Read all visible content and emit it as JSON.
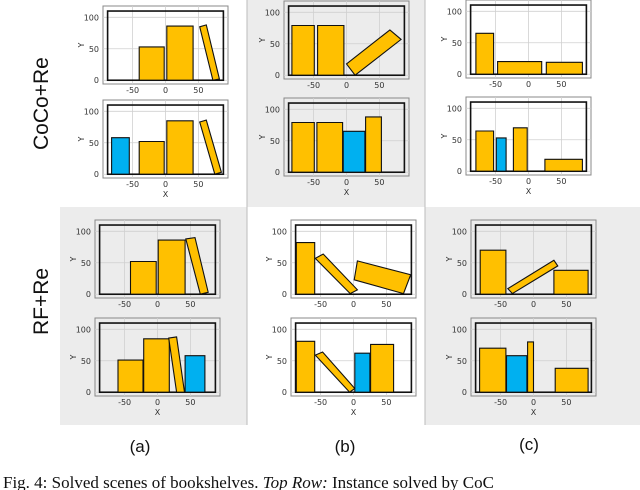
{
  "colors": {
    "book_yellow": "#FFC000",
    "book_blue": "#00B0F0",
    "panel_gray": "#ececec",
    "shelf": "#111111"
  },
  "row_labels": [
    "CoCo+Re",
    "RF+Re"
  ],
  "panel_labels": [
    "(a)",
    "(b)",
    "(c)"
  ],
  "caption": {
    "prefix": "Fig. 4: Solved scenes of bookshelves. ",
    "italic": "Top Row:",
    "suffix": " Instance solved by CoC"
  },
  "axes": {
    "xlabel": "X",
    "ylabel": "Y",
    "xticks": [
      "-50",
      "0",
      "50"
    ],
    "yticks": [
      "0",
      "50",
      "100"
    ],
    "xtick_values": [
      -50,
      0,
      50
    ],
    "ytick_values": [
      0,
      50,
      100
    ],
    "xlim": [
      -95,
      95
    ],
    "ylim": [
      -6,
      118
    ],
    "shelf": [
      -88,
      88,
      0,
      110
    ]
  },
  "plots": [
    {
      "name": "coco-a-1",
      "show_xlabel": false,
      "books": [
        {
          "c": "yellow",
          "p": [
            [
              -40,
              0
            ],
            [
              -2,
              0
            ],
            [
              -2,
              53
            ],
            [
              -40,
              53
            ]
          ]
        },
        {
          "c": "yellow",
          "p": [
            [
              2,
              0
            ],
            [
              42,
              0
            ],
            [
              42,
              86
            ],
            [
              2,
              86
            ]
          ]
        },
        {
          "c": "yellow",
          "p": [
            [
              52,
              85
            ],
            [
              62,
              88
            ],
            [
              82,
              2
            ],
            [
              72,
              0
            ]
          ]
        }
      ]
    },
    {
      "name": "coco-a-2",
      "show_xlabel": true,
      "books": [
        {
          "c": "blue",
          "p": [
            [
              -82,
              0
            ],
            [
              -55,
              0
            ],
            [
              -55,
              58
            ],
            [
              -82,
              58
            ]
          ]
        },
        {
          "c": "yellow",
          "p": [
            [
              -40,
              0
            ],
            [
              -2,
              0
            ],
            [
              -2,
              52
            ],
            [
              -40,
              52
            ]
          ]
        },
        {
          "c": "yellow",
          "p": [
            [
              2,
              0
            ],
            [
              42,
              0
            ],
            [
              42,
              85
            ],
            [
              2,
              85
            ]
          ]
        },
        {
          "c": "yellow",
          "p": [
            [
              52,
              83
            ],
            [
              62,
              86
            ],
            [
              85,
              3
            ],
            [
              75,
              0
            ]
          ]
        }
      ]
    },
    {
      "name": "coco-b-1",
      "show_xlabel": false,
      "books": [
        {
          "c": "yellow",
          "p": [
            [
              -83,
              0
            ],
            [
              -49,
              0
            ],
            [
              -49,
              79
            ],
            [
              -83,
              79
            ]
          ]
        },
        {
          "c": "yellow",
          "p": [
            [
              -44,
              0
            ],
            [
              -4,
              0
            ],
            [
              -4,
              79
            ],
            [
              -44,
              79
            ]
          ]
        },
        {
          "c": "yellow",
          "p": [
            [
              0,
              18
            ],
            [
              66,
              72
            ],
            [
              83,
              57
            ],
            [
              13,
              0
            ]
          ]
        }
      ]
    },
    {
      "name": "coco-b-2",
      "show_xlabel": true,
      "books": [
        {
          "c": "yellow",
          "p": [
            [
              -83,
              0
            ],
            [
              -49,
              0
            ],
            [
              -49,
              79
            ],
            [
              -83,
              79
            ]
          ]
        },
        {
          "c": "yellow",
          "p": [
            [
              -45,
              0
            ],
            [
              -6,
              0
            ],
            [
              -6,
              79
            ],
            [
              -45,
              79
            ]
          ]
        },
        {
          "c": "blue",
          "p": [
            [
              -5,
              0
            ],
            [
              28,
              0
            ],
            [
              28,
              65
            ],
            [
              -5,
              65
            ]
          ]
        },
        {
          "c": "yellow",
          "p": [
            [
              29,
              0
            ],
            [
              53,
              0
            ],
            [
              53,
              88
            ],
            [
              29,
              88
            ]
          ]
        }
      ]
    },
    {
      "name": "coco-c-1",
      "show_xlabel": false,
      "books": [
        {
          "c": "yellow",
          "p": [
            [
              -80,
              0
            ],
            [
              -53,
              0
            ],
            [
              -53,
              65
            ],
            [
              -80,
              65
            ]
          ]
        },
        {
          "c": "yellow",
          "p": [
            [
              -47,
              0
            ],
            [
              20,
              0
            ],
            [
              20,
              20
            ],
            [
              -47,
              20
            ]
          ]
        },
        {
          "c": "yellow",
          "p": [
            [
              27,
              0
            ],
            [
              82,
              0
            ],
            [
              82,
              19
            ],
            [
              27,
              19
            ]
          ]
        }
      ]
    },
    {
      "name": "coco-c-2",
      "show_xlabel": true,
      "books": [
        {
          "c": "yellow",
          "p": [
            [
              -80,
              0
            ],
            [
              -53,
              0
            ],
            [
              -53,
              64
            ],
            [
              -80,
              64
            ]
          ]
        },
        {
          "c": "blue",
          "p": [
            [
              -49,
              0
            ],
            [
              -34,
              0
            ],
            [
              -34,
              53
            ],
            [
              -49,
              53
            ]
          ]
        },
        {
          "c": "yellow",
          "p": [
            [
              -23,
              0
            ],
            [
              -2,
              0
            ],
            [
              -2,
              69
            ],
            [
              -23,
              69
            ]
          ]
        },
        {
          "c": "yellow",
          "p": [
            [
              25,
              0
            ],
            [
              82,
              0
            ],
            [
              82,
              19
            ],
            [
              25,
              19
            ]
          ]
        }
      ]
    },
    {
      "name": "rf-a-1",
      "show_xlabel": false,
      "books": [
        {
          "c": "yellow",
          "p": [
            [
              -41,
              0
            ],
            [
              -2,
              0
            ],
            [
              -2,
              52
            ],
            [
              -41,
              52
            ]
          ]
        },
        {
          "c": "yellow",
          "p": [
            [
              1,
              0
            ],
            [
              42,
              0
            ],
            [
              42,
              86
            ],
            [
              1,
              86
            ]
          ]
        },
        {
          "c": "yellow",
          "p": [
            [
              43,
              88
            ],
            [
              57,
              90
            ],
            [
              77,
              3
            ],
            [
              65,
              0
            ]
          ]
        }
      ]
    },
    {
      "name": "rf-a-2",
      "show_xlabel": true,
      "books": [
        {
          "c": "yellow",
          "p": [
            [
              -60,
              0
            ],
            [
              -22,
              0
            ],
            [
              -22,
              51
            ],
            [
              -60,
              51
            ]
          ]
        },
        {
          "c": "yellow",
          "p": [
            [
              -21,
              0
            ],
            [
              18,
              0
            ],
            [
              18,
              85
            ],
            [
              -21,
              85
            ]
          ]
        },
        {
          "c": "yellow",
          "p": [
            [
              17,
              86
            ],
            [
              29,
              88
            ],
            [
              41,
              0
            ],
            [
              29,
              0
            ]
          ]
        },
        {
          "c": "blue",
          "p": [
            [
              42,
              0
            ],
            [
              72,
              0
            ],
            [
              72,
              58
            ],
            [
              42,
              58
            ]
          ]
        }
      ]
    },
    {
      "name": "rf-b-1",
      "show_xlabel": false,
      "books": [
        {
          "c": "yellow",
          "p": [
            [
              -87,
              0
            ],
            [
              -59,
              0
            ],
            [
              -59,
              82
            ],
            [
              -87,
              82
            ]
          ]
        },
        {
          "c": "yellow",
          "p": [
            [
              -58,
              57
            ],
            [
              -46,
              64
            ],
            [
              6,
              7
            ],
            [
              -5,
              1
            ]
          ]
        },
        {
          "c": "yellow",
          "p": [
            [
              6,
              53
            ],
            [
              1,
              23
            ],
            [
              76,
              1
            ],
            [
              87,
              31
            ]
          ]
        }
      ]
    },
    {
      "name": "rf-b-2",
      "show_xlabel": true,
      "books": [
        {
          "c": "yellow",
          "p": [
            [
              -87,
              0
            ],
            [
              -59,
              0
            ],
            [
              -59,
              81
            ],
            [
              -87,
              81
            ]
          ]
        },
        {
          "c": "yellow",
          "p": [
            [
              -58,
              59
            ],
            [
              -47,
              64
            ],
            [
              2,
              6
            ],
            [
              -6,
              0
            ]
          ]
        },
        {
          "c": "blue",
          "p": [
            [
              2,
              0
            ],
            [
              25,
              0
            ],
            [
              25,
              62
            ],
            [
              2,
              62
            ]
          ]
        },
        {
          "c": "yellow",
          "p": [
            [
              26,
              0
            ],
            [
              61,
              0
            ],
            [
              61,
              76
            ],
            [
              26,
              76
            ]
          ]
        }
      ]
    },
    {
      "name": "rf-c-1",
      "show_xlabel": false,
      "books": [
        {
          "c": "yellow",
          "p": [
            [
              -81,
              0
            ],
            [
              -42,
              0
            ],
            [
              -42,
              70
            ],
            [
              -81,
              70
            ]
          ]
        },
        {
          "c": "yellow",
          "p": [
            [
              -39,
              9
            ],
            [
              -32,
              1
            ],
            [
              37,
              45
            ],
            [
              31,
              54
            ]
          ]
        },
        {
          "c": "yellow",
          "p": [
            [
              31,
              0
            ],
            [
              83,
              0
            ],
            [
              83,
              38
            ],
            [
              31,
              38
            ]
          ]
        }
      ]
    },
    {
      "name": "rf-c-2",
      "show_xlabel": true,
      "books": [
        {
          "c": "yellow",
          "p": [
            [
              -82,
              0
            ],
            [
              -42,
              0
            ],
            [
              -42,
              70
            ],
            [
              -82,
              70
            ]
          ]
        },
        {
          "c": "blue",
          "p": [
            [
              -41,
              0
            ],
            [
              -10,
              0
            ],
            [
              -10,
              58
            ],
            [
              -41,
              58
            ]
          ]
        },
        {
          "c": "yellow",
          "p": [
            [
              -9,
              0
            ],
            [
              0,
              0
            ],
            [
              0,
              80
            ],
            [
              -9,
              80
            ]
          ]
        },
        {
          "c": "yellow",
          "p": [
            [
              33,
              0
            ],
            [
              83,
              0
            ],
            [
              83,
              38
            ],
            [
              33,
              38
            ]
          ]
        }
      ]
    }
  ]
}
